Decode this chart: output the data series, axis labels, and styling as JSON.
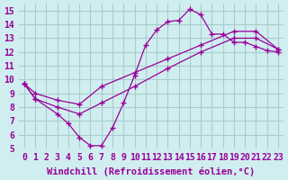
{
  "bg_color": "#d0eef0",
  "grid_color": "#aacccc",
  "line_color": "#990099",
  "marker": "+",
  "xlabel": "Windchill (Refroidissement éolien,°C)",
  "xlim": [
    -0.5,
    23.5
  ],
  "ylim": [
    5,
    15.5
  ],
  "xticks": [
    0,
    1,
    2,
    3,
    4,
    5,
    6,
    7,
    8,
    9,
    10,
    11,
    12,
    13,
    14,
    15,
    16,
    17,
    18,
    19,
    20,
    21,
    22,
    23
  ],
  "yticks": [
    5,
    6,
    7,
    8,
    9,
    10,
    11,
    12,
    13,
    14,
    15
  ],
  "curve1_x": [
    0,
    1,
    3,
    4,
    5,
    6,
    7,
    8,
    9,
    10,
    11,
    12,
    13,
    14,
    15,
    16,
    17,
    18,
    19,
    20,
    21,
    22,
    23
  ],
  "curve1_y": [
    9.7,
    8.6,
    7.5,
    6.8,
    5.8,
    5.2,
    5.2,
    6.5,
    8.3,
    10.3,
    12.5,
    13.6,
    14.2,
    14.3,
    15.1,
    14.7,
    13.3,
    13.3,
    12.7,
    12.7,
    12.4,
    12.1,
    12.0
  ],
  "curve2_x": [
    0,
    1,
    3,
    5,
    7,
    10,
    13,
    16,
    19,
    21,
    23
  ],
  "curve2_y": [
    9.7,
    9.0,
    8.5,
    8.2,
    9.5,
    10.5,
    11.5,
    12.5,
    13.5,
    13.5,
    12.2
  ],
  "curve3_x": [
    0,
    1,
    3,
    5,
    7,
    10,
    13,
    16,
    19,
    21,
    23
  ],
  "curve3_y": [
    9.7,
    8.6,
    8.0,
    7.5,
    8.3,
    9.5,
    10.8,
    12.0,
    13.0,
    13.0,
    12.2
  ],
  "xlabel_fontsize": 7.5,
  "tick_fontsize": 7,
  "label_color": "#990099",
  "tick_color": "#990099"
}
